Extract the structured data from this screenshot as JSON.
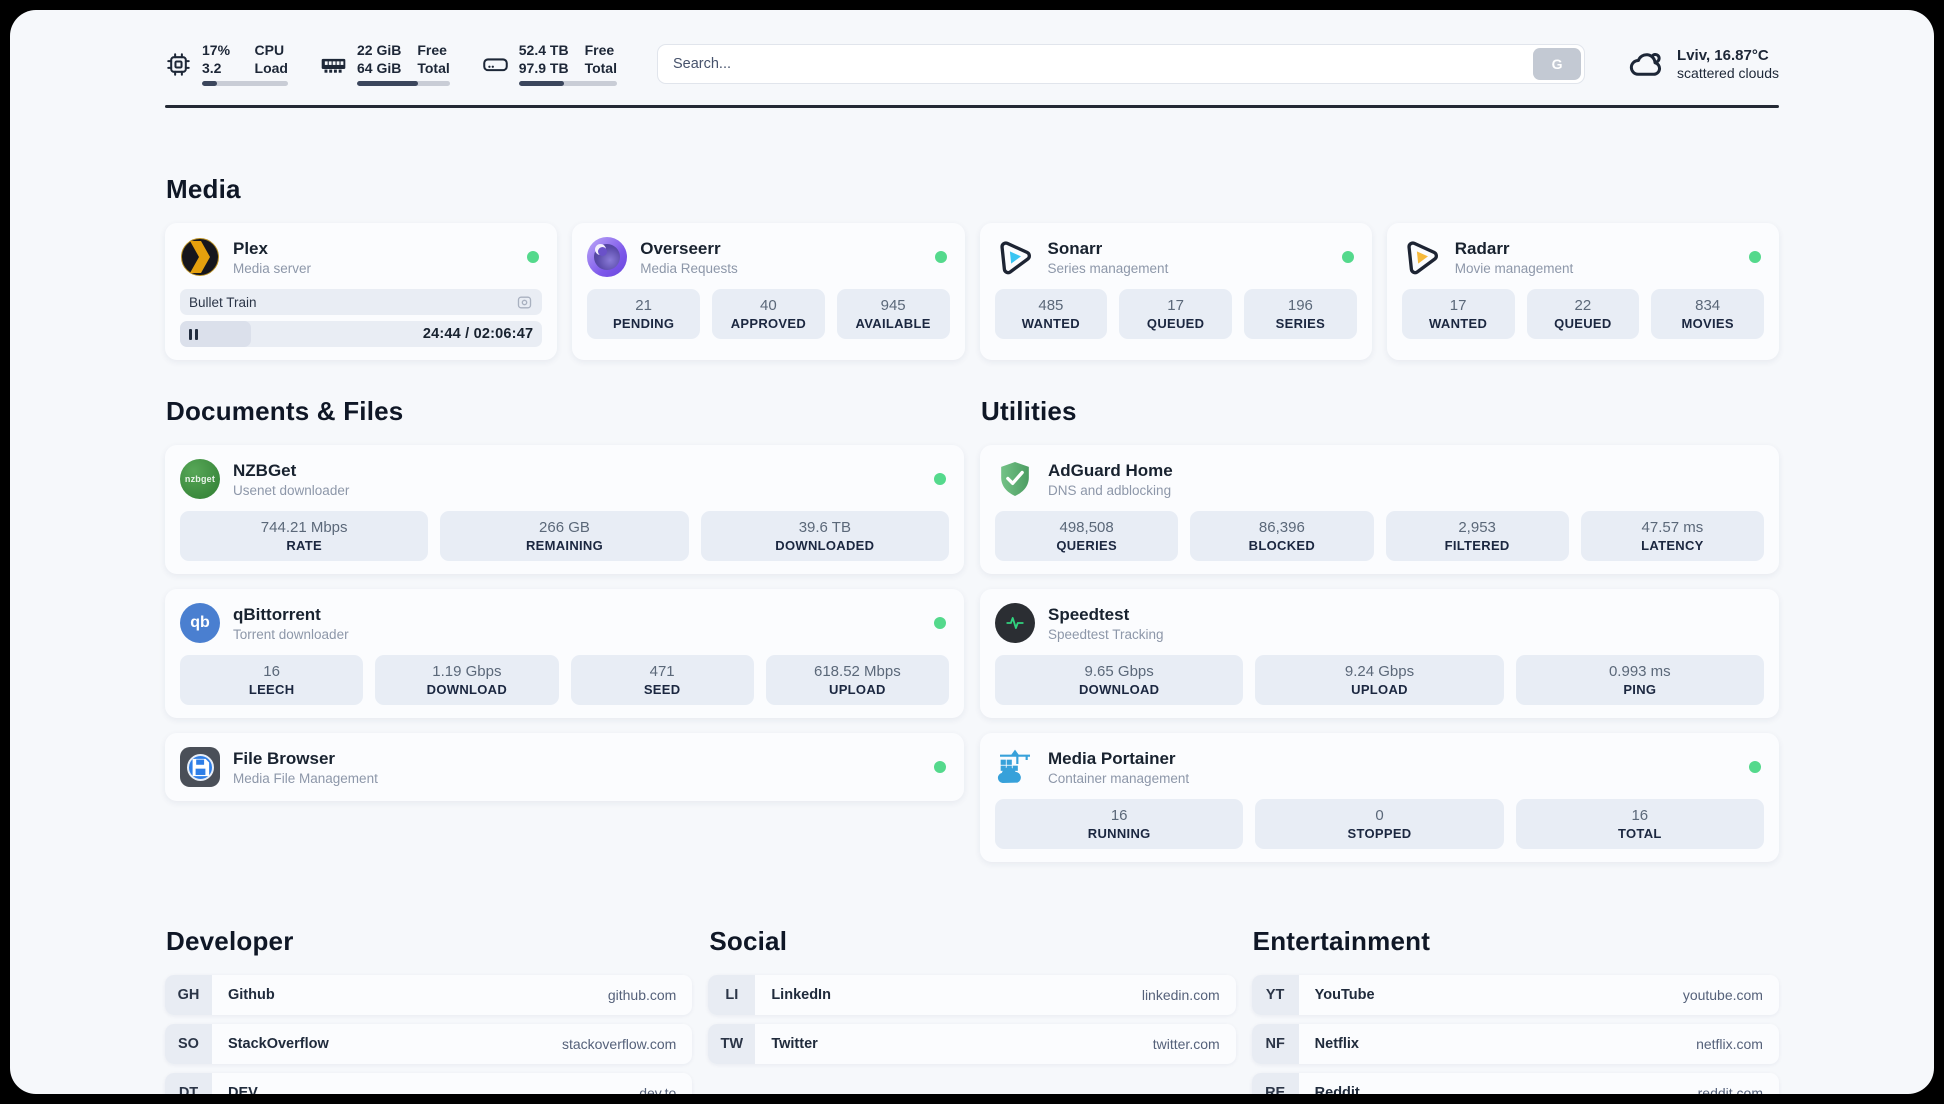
{
  "colors": {
    "status_online": "#54d98c",
    "topbar_text": "#1d2737",
    "progress_fill": "#3b465c",
    "plex_gold": "#e5a00d",
    "sonarr_blue": "#39c5f3",
    "radarr_gold": "#f6b93b",
    "adguard_green": "#5fae6e",
    "portainer_blue": "#37a1da",
    "qbittorrent_blue": "#4a7fd0",
    "nzbget_green": "#3f8e3f"
  },
  "topbar": {
    "system_stats": [
      {
        "id": "cpu",
        "icon": "cpu-icon",
        "values": [
          "17%",
          "3.2"
        ],
        "labels": [
          "CPU",
          "Load"
        ],
        "progress_percent": 17
      },
      {
        "id": "memory",
        "icon": "memory-icon",
        "values": [
          "22 GiB",
          "64 GiB"
        ],
        "labels": [
          "Free",
          "Total"
        ],
        "progress_percent": 66
      },
      {
        "id": "storage",
        "icon": "storage-icon",
        "values": [
          "52.4 TB",
          "97.9 TB"
        ],
        "labels": [
          "Free",
          "Total"
        ],
        "progress_percent": 46
      }
    ],
    "search": {
      "placeholder": "Search...",
      "engine_button": "G"
    },
    "weather": {
      "icon": "cloud-icon",
      "location_temp": "Lviv, 16.87°C",
      "description": "scattered clouds"
    }
  },
  "media_section": {
    "title": "Media",
    "cards": [
      {
        "id": "plex",
        "icon": "plex-icon",
        "title": "Plex",
        "subtitle": "Media server",
        "online": true,
        "player": {
          "media_title": "Bullet Train",
          "state": "paused",
          "elapsed": "24:44",
          "duration": "02:06:47",
          "time_display": "24:44 / 02:06:47",
          "progress_percent": 19.5
        }
      },
      {
        "id": "overseerr",
        "icon": "overseerr-icon",
        "title": "Overseerr",
        "subtitle": "Media Requests",
        "online": true,
        "stats": [
          {
            "value": "21",
            "label": "PENDING"
          },
          {
            "value": "40",
            "label": "APPROVED"
          },
          {
            "value": "945",
            "label": "AVAILABLE"
          }
        ]
      },
      {
        "id": "sonarr",
        "icon": "sonarr-icon",
        "title": "Sonarr",
        "subtitle": "Series management",
        "online": true,
        "stats": [
          {
            "value": "485",
            "label": "WANTED"
          },
          {
            "value": "17",
            "label": "QUEUED"
          },
          {
            "value": "196",
            "label": "SERIES"
          }
        ]
      },
      {
        "id": "radarr",
        "icon": "radarr-icon",
        "title": "Radarr",
        "subtitle": "Movie management",
        "online": true,
        "stats": [
          {
            "value": "17",
            "label": "WANTED"
          },
          {
            "value": "22",
            "label": "QUEUED"
          },
          {
            "value": "834",
            "label": "MOVIES"
          }
        ]
      }
    ]
  },
  "documents_section": {
    "title": "Documents & Files",
    "cards": [
      {
        "id": "nzbget",
        "icon": "nzbget-icon",
        "title": "NZBGet",
        "subtitle": "Usenet downloader",
        "online": true,
        "stats": [
          {
            "value": "744.21 Mbps",
            "label": "RATE"
          },
          {
            "value": "266 GB",
            "label": "REMAINING"
          },
          {
            "value": "39.6 TB",
            "label": "DOWNLOADED"
          }
        ]
      },
      {
        "id": "qbittorrent",
        "icon": "qbittorrent-icon",
        "title": "qBittorrent",
        "subtitle": "Torrent downloader",
        "online": true,
        "stats": [
          {
            "value": "16",
            "label": "LEECH"
          },
          {
            "value": "1.19 Gbps",
            "label": "DOWNLOAD"
          },
          {
            "value": "471",
            "label": "SEED"
          },
          {
            "value": "618.52 Mbps",
            "label": "UPLOAD"
          }
        ]
      },
      {
        "id": "filebrowser",
        "icon": "filebrowser-icon",
        "title": "File Browser",
        "subtitle": "Media File Management",
        "online": true
      }
    ]
  },
  "utilities_section": {
    "title": "Utilities",
    "cards": [
      {
        "id": "adguard",
        "icon": "adguard-icon",
        "title": "AdGuard Home",
        "subtitle": "DNS and adblocking",
        "online": false,
        "stats": [
          {
            "value": "498,508",
            "label": "QUERIES"
          },
          {
            "value": "86,396",
            "label": "BLOCKED"
          },
          {
            "value": "2,953",
            "label": "FILTERED"
          },
          {
            "value": "47.57 ms",
            "label": "LATENCY"
          }
        ]
      },
      {
        "id": "speedtest",
        "icon": "speedtest-icon",
        "title": "Speedtest",
        "subtitle": "Speedtest Tracking",
        "online": false,
        "stats": [
          {
            "value": "9.65 Gbps",
            "label": "DOWNLOAD"
          },
          {
            "value": "9.24 Gbps",
            "label": "UPLOAD"
          },
          {
            "value": "0.993 ms",
            "label": "PING"
          }
        ]
      },
      {
        "id": "portainer",
        "icon": "portainer-icon",
        "title": "Media Portainer",
        "subtitle": "Container management",
        "online": true,
        "stats": [
          {
            "value": "16",
            "label": "RUNNING"
          },
          {
            "value": "0",
            "label": "STOPPED"
          },
          {
            "value": "16",
            "label": "TOTAL"
          }
        ]
      }
    ]
  },
  "bookmark_sections": [
    {
      "id": "developer",
      "title": "Developer",
      "links": [
        {
          "id": "github",
          "abbr": "GH",
          "name": "Github",
          "url": "github.com"
        },
        {
          "id": "stackoverflow",
          "abbr": "SO",
          "name": "StackOverflow",
          "url": "stackoverflow.com"
        },
        {
          "id": "dev",
          "abbr": "DT",
          "name": "DEV",
          "url": "dev.to"
        }
      ]
    },
    {
      "id": "social",
      "title": "Social",
      "links": [
        {
          "id": "linkedin",
          "abbr": "LI",
          "name": "LinkedIn",
          "url": "linkedin.com"
        },
        {
          "id": "twitter",
          "abbr": "TW",
          "name": "Twitter",
          "url": "twitter.com"
        }
      ]
    },
    {
      "id": "entertainment",
      "title": "Entertainment",
      "links": [
        {
          "id": "youtube",
          "abbr": "YT",
          "name": "YouTube",
          "url": "youtube.com"
        },
        {
          "id": "netflix",
          "abbr": "NF",
          "name": "Netflix",
          "url": "netflix.com"
        },
        {
          "id": "reddit",
          "abbr": "RE",
          "name": "Reddit",
          "url": "reddit.com"
        }
      ]
    }
  ]
}
